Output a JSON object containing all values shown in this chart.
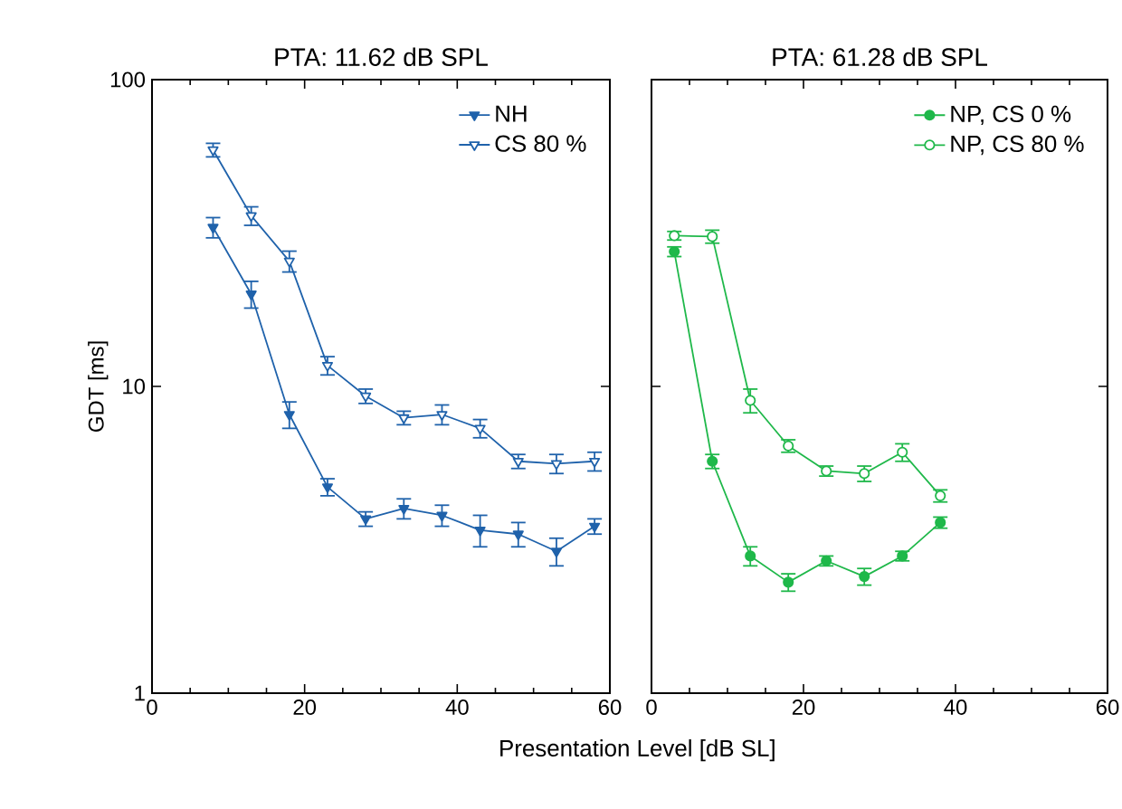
{
  "chart_data": [
    {
      "type": "line",
      "title": "PTA: 11.62 dB SPL",
      "xlabel": "Presentation Level [dB SL]",
      "ylabel": "GDT [ms]",
      "log": "y",
      "xlim": [
        0,
        60
      ],
      "xticks": [
        0,
        20,
        40,
        60
      ],
      "ylim": [
        1,
        100
      ],
      "yticks": [
        1,
        10,
        100
      ],
      "legend": "top right",
      "grid": false,
      "series": [
        {
          "name": "NH",
          "color": "#1f62ab",
          "marker": "triangle",
          "x": [
            8,
            13,
            18,
            23,
            28,
            33,
            38,
            43,
            48,
            53,
            58
          ],
          "values": [
            33,
            20,
            8.1,
            4.7,
            3.7,
            4.0,
            3.8,
            3.4,
            3.3,
            2.9,
            3.5
          ],
          "errors": [
            2.5,
            2,
            0.8,
            0.3,
            0.2,
            0.3,
            0.3,
            0.4,
            0.3,
            0.3,
            0.2
          ]
        },
        {
          "name": "CS 80 %",
          "color": "#1f62ab",
          "marker": "triangle",
          "x": [
            8,
            13,
            18,
            23,
            28,
            33,
            38,
            43,
            48,
            53,
            58
          ],
          "values": [
            59,
            36,
            25.6,
            11.7,
            9.3,
            7.9,
            8.1,
            7.3,
            5.7,
            5.6,
            5.7
          ],
          "errors": [
            3,
            2.5,
            2,
            0.8,
            0.5,
            0.4,
            0.6,
            0.5,
            0.3,
            0.4,
            0.4
          ]
        }
      ]
    },
    {
      "type": "line",
      "title": "PTA: 61.28 dB SPL",
      "log": "y",
      "xlim": [
        0,
        60
      ],
      "xticks": [
        0,
        20,
        40,
        60
      ],
      "ylim": [
        1,
        100
      ],
      "yticks": [
        1,
        10,
        100
      ],
      "tick_labels": "x",
      "legend": "top right",
      "grid": false,
      "series": [
        {
          "name": "NP, CS 0 %",
          "color": "#1fb84a",
          "marker": "circle",
          "x": [
            3,
            8,
            13,
            18,
            23,
            28,
            33,
            38
          ],
          "values": [
            27.5,
            5.7,
            2.8,
            2.3,
            2.7,
            2.4,
            2.8,
            3.6
          ],
          "errors": [
            1,
            0.3,
            0.2,
            0.15,
            0.1,
            0.15,
            0.1,
            0.15
          ]
        },
        {
          "name": "NP, CS 80 %",
          "color": "#1fb84a",
          "marker": "circle",
          "x": [
            3,
            8,
            13,
            18,
            23,
            28,
            33,
            38
          ],
          "values": [
            31,
            30.8,
            9.0,
            6.4,
            5.3,
            5.2,
            6.1,
            4.4
          ],
          "errors": [
            1,
            1.5,
            0.8,
            0.3,
            0.2,
            0.3,
            0.4,
            0.2
          ]
        }
      ]
    }
  ]
}
